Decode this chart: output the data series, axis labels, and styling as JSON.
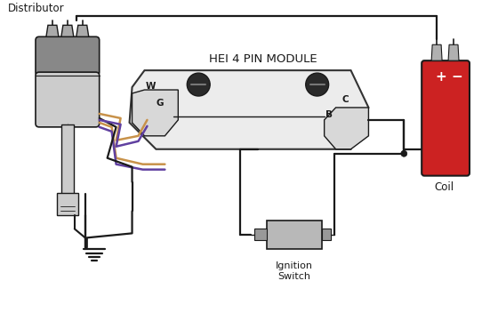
{
  "title": "HEI 4 PIN MODULE",
  "label_distributor": "Distributor",
  "label_coil": "Coil",
  "label_ignition": "Ignition\nSwitch",
  "label_w": "W",
  "label_g": "G",
  "label_b": "B",
  "label_c": "C",
  "label_plus": "+",
  "label_minus": "−",
  "bg_color": "#ffffff",
  "line_color": "#1a1a1a",
  "orange_wire": "#c8924a",
  "purple_wire": "#6040a0",
  "dist_body_dark": "#888888",
  "dist_body_light": "#cccccc",
  "dist_cap_color": "#aaaaaa",
  "coil_color": "#cc2222",
  "module_fill": "#ececec",
  "module_stroke": "#333333",
  "conn_fill": "#d8d8d8",
  "ignition_fill": "#b8b8b8",
  "figsize": [
    5.6,
    3.52
  ],
  "dpi": 100
}
